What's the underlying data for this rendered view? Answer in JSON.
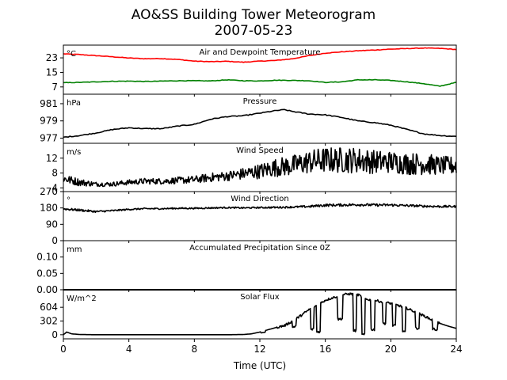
{
  "figure": {
    "title": "AO&SS Building Tower Meteorogram",
    "subtitle": "2007-05-23",
    "xlabel": "Time (UTC)"
  },
  "chart_data": [
    {
      "type": "line",
      "title": "Air and Dewpoint Temperature",
      "unit": "°C",
      "ylim": [
        3,
        30
      ],
      "yticks": [
        7,
        15,
        23
      ],
      "grid": false,
      "series": [
        {
          "color": "#ff0000",
          "x": [
            0,
            1,
            2,
            3,
            4,
            5,
            6,
            7,
            8,
            9,
            10,
            11,
            12,
            13,
            14,
            15,
            16,
            17,
            18,
            19,
            20,
            21,
            22,
            23,
            24
          ],
          "y": [
            25.2,
            24.8,
            24.2,
            23.6,
            22.9,
            22.5,
            22.6,
            22.1,
            21.2,
            20.9,
            21.1,
            20.6,
            21.2,
            21.6,
            22.5,
            24.2,
            25.6,
            26.3,
            26.9,
            27.3,
            27.8,
            28.1,
            28.4,
            28.2,
            27.6
          ]
        },
        {
          "color": "#008000",
          "x": [
            0,
            1,
            2,
            3,
            4,
            5,
            6,
            7,
            8,
            9,
            10,
            11,
            12,
            13,
            14,
            15,
            16,
            17,
            18,
            19,
            20,
            21,
            22,
            23,
            24
          ],
          "y": [
            9.3,
            9.5,
            9.8,
            10.1,
            10.2,
            10.0,
            10.2,
            10.4,
            10.4,
            10.3,
            10.9,
            10.4,
            10.3,
            10.7,
            10.6,
            10.4,
            9.5,
            9.8,
            10.9,
            10.9,
            10.6,
            9.8,
            8.8,
            7.4,
            9.5
          ]
        }
      ]
    },
    {
      "type": "line",
      "title": "Pressure",
      "unit": "hPa",
      "ylim": [
        976.4,
        982.1
      ],
      "yticks": [
        977,
        979,
        981
      ],
      "grid": false,
      "series": [
        {
          "color": "#000000",
          "x": [
            0,
            1,
            2,
            3,
            4,
            5,
            6,
            7,
            8,
            9,
            10,
            11,
            12,
            13,
            13.5,
            14,
            15,
            16,
            17,
            18,
            19,
            20,
            21,
            22,
            23,
            24
          ],
          "y": [
            977.1,
            977.3,
            977.6,
            978.0,
            978.2,
            978.1,
            978.1,
            978.4,
            978.6,
            979.2,
            979.5,
            979.6,
            979.9,
            980.2,
            980.3,
            980.1,
            979.8,
            979.7,
            979.4,
            979.0,
            978.8,
            978.5,
            978.0,
            977.5,
            977.3,
            977.2
          ]
        }
      ]
    },
    {
      "type": "line",
      "title": "Wind Speed",
      "unit": "m/s",
      "ylim": [
        3,
        16
      ],
      "yticks": [
        4,
        8,
        12
      ],
      "grid": false,
      "series": [
        {
          "color": "#000000",
          "x": [
            0,
            1,
            2,
            3,
            4,
            5,
            6,
            7,
            8,
            9,
            10,
            11,
            12,
            13,
            14,
            15,
            16,
            17,
            18,
            19,
            20,
            21,
            22,
            23,
            24
          ],
          "y": [
            6.5,
            5.5,
            5.0,
            5.0,
            5.5,
            5.8,
            5.8,
            6.0,
            6.2,
            6.8,
            7.2,
            7.8,
            8.5,
            9.5,
            10.0,
            11.0,
            11.5,
            11.5,
            11.5,
            11.0,
            11.0,
            10.5,
            10.5,
            10.0,
            10.0
          ],
          "noise": [
            1.2,
            1.0,
            0.6,
            0.6,
            0.7,
            0.8,
            0.8,
            0.9,
            1.0,
            1.2,
            1.3,
            1.6,
            2.0,
            2.5,
            2.8,
            3.2,
            3.5,
            3.5,
            3.5,
            3.2,
            3.0,
            3.0,
            3.0,
            2.5,
            2.5
          ]
        }
      ]
    },
    {
      "type": "line",
      "title": "Wind Direction",
      "unit": "°",
      "ylim": [
        0,
        270
      ],
      "yticks": [
        0,
        90,
        180,
        270
      ],
      "grid": false,
      "series": [
        {
          "color": "#000000",
          "x": [
            0,
            1,
            2,
            3,
            4,
            5,
            6,
            7,
            8,
            9,
            10,
            11,
            12,
            13,
            14,
            15,
            16,
            17,
            18,
            19,
            20,
            21,
            22,
            23,
            24
          ],
          "y": [
            175,
            168,
            160,
            165,
            172,
            176,
            176,
            178,
            178,
            180,
            182,
            180,
            182,
            183,
            185,
            188,
            195,
            196,
            198,
            196,
            196,
            193,
            190,
            188,
            188
          ],
          "noise": [
            6,
            6,
            5,
            4,
            4,
            4,
            4,
            4,
            4,
            4,
            4,
            4,
            4,
            5,
            5,
            6,
            7,
            7,
            7,
            7,
            7,
            6,
            6,
            6,
            6
          ]
        }
      ]
    },
    {
      "type": "line",
      "title": "Accumulated Precipitation Since 0Z",
      "unit": "mm",
      "ylim": [
        0,
        0.15
      ],
      "yticks": [
        0.0,
        0.05,
        0.1
      ],
      "yticklabels": [
        "0.00",
        "0.05",
        "0.10"
      ],
      "grid": false,
      "series": [
        {
          "color": "#000000",
          "x": [
            0,
            24
          ],
          "y": [
            0,
            0
          ]
        }
      ]
    },
    {
      "type": "line",
      "title": "Solar Flux",
      "unit": "W/m^2",
      "ylim": [
        -90,
        990
      ],
      "yticks": [
        0,
        302,
        604
      ],
      "grid": false,
      "series": [
        {
          "color": "#000000",
          "x": [
            0,
            0.2,
            0.5,
            1,
            2,
            3,
            4,
            5,
            6,
            7,
            8,
            9,
            10,
            11,
            11.5,
            12,
            12.5,
            13,
            13.5,
            14,
            14.5,
            15,
            15.5,
            16,
            16.5,
            17,
            17.5,
            18,
            18.5,
            19,
            19.5,
            20,
            20.5,
            21,
            21.5,
            22,
            22.5,
            23,
            23.5,
            24
          ],
          "y": [
            0,
            60,
            20,
            5,
            0,
            0,
            0,
            0,
            0,
            0,
            0,
            0,
            0,
            5,
            20,
            60,
            110,
            160,
            200,
            300,
            420,
            550,
            650,
            760,
            820,
            880,
            900,
            880,
            780,
            760,
            720,
            690,
            640,
            580,
            500,
            420,
            330,
            250,
            190,
            140
          ],
          "dips": [
            [
              12.2,
              0.15,
              0.6
            ],
            [
              14.1,
              0.1,
              0.55
            ],
            [
              15.2,
              0.1,
              0.2
            ],
            [
              15.6,
              0.12,
              0.1
            ],
            [
              16.9,
              0.15,
              0.4
            ],
            [
              17.8,
              0.1,
              0.1
            ],
            [
              18.3,
              0.1,
              0.0
            ],
            [
              18.9,
              0.12,
              0.15
            ],
            [
              19.6,
              0.1,
              0.35
            ],
            [
              20.2,
              0.1,
              0.3
            ],
            [
              20.8,
              0.1,
              0.1
            ],
            [
              21.6,
              0.12,
              0.3
            ],
            [
              22.7,
              0.15,
              0.4
            ]
          ]
        }
      ]
    }
  ],
  "xaxis": {
    "xlim": [
      0,
      24
    ],
    "xticks": [
      0,
      4,
      8,
      12,
      16,
      20,
      24
    ]
  }
}
